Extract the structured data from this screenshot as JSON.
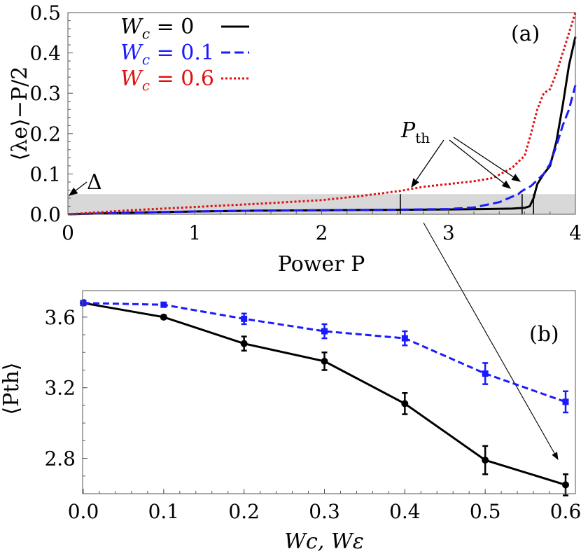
{
  "chart_data": [
    {
      "type": "line",
      "panel_label": "(a)",
      "xlabel": "Power P",
      "ylabel": "⟨λe⟩−P/2",
      "xlim": [
        0,
        4
      ],
      "ylim": [
        0,
        0.5
      ],
      "xticks": [
        "0",
        "1",
        "2",
        "3",
        "4"
      ],
      "yticks": [
        "0.0",
        "0.1",
        "0.2",
        "0.3",
        "0.4",
        "0.5"
      ],
      "band": {
        "label": "Δ",
        "y_max": 0.05
      },
      "annotation": "Pth",
      "thresholds": [
        2.62,
        3.58,
        3.67
      ],
      "series": [
        {
          "name": "Wc = 0",
          "color": "#000000",
          "dash": "solid",
          "x": [
            0,
            0.5,
            1,
            1.5,
            2,
            2.5,
            3,
            3.3,
            3.5,
            3.6,
            3.64,
            3.67,
            3.7,
            3.75,
            3.8,
            3.85,
            3.9,
            3.95,
            4.0
          ],
          "y": [
            0.0,
            0.004,
            0.007,
            0.009,
            0.01,
            0.011,
            0.012,
            0.013,
            0.014,
            0.016,
            0.02,
            0.04,
            0.075,
            0.1,
            0.12,
            0.18,
            0.27,
            0.37,
            0.44
          ]
        },
        {
          "name": "Wc = 0.1",
          "color": "#1a1aff",
          "dash": "dashed",
          "x": [
            0,
            0.5,
            1,
            1.5,
            2,
            2.5,
            3,
            3.2,
            3.4,
            3.55,
            3.58,
            3.65,
            3.7,
            3.75,
            3.8,
            3.85,
            3.9,
            3.95,
            4.0
          ],
          "y": [
            0.0,
            0.004,
            0.007,
            0.009,
            0.01,
            0.011,
            0.013,
            0.017,
            0.03,
            0.05,
            0.058,
            0.07,
            0.085,
            0.1,
            0.125,
            0.17,
            0.22,
            0.26,
            0.32
          ]
        },
        {
          "name": "Wc = 0.6",
          "color": "#e01010",
          "dash": "dotted",
          "x": [
            0,
            0.5,
            1,
            1.5,
            2,
            2.3,
            2.62,
            2.8,
            3.0,
            3.2,
            3.35,
            3.5,
            3.6,
            3.65,
            3.7,
            3.75,
            3.8,
            3.85,
            3.9,
            3.95,
            4.0
          ],
          "y": [
            0.0,
            0.01,
            0.018,
            0.026,
            0.035,
            0.045,
            0.058,
            0.068,
            0.075,
            0.082,
            0.09,
            0.115,
            0.145,
            0.2,
            0.26,
            0.3,
            0.31,
            0.35,
            0.4,
            0.45,
            0.5
          ]
        }
      ]
    },
    {
      "type": "line",
      "panel_label": "(b)",
      "xlabel": "Wc, Wε",
      "ylabel": "⟨Pth⟩",
      "xlim": [
        0,
        0.6
      ],
      "ylim": [
        2.6,
        3.75
      ],
      "xticks": [
        "0.0",
        "0.1",
        "0.2",
        "0.3",
        "0.4",
        "0.5",
        "0.6"
      ],
      "yticks": [
        "2.8",
        "3.2",
        "3.6"
      ],
      "x": [
        0.0,
        0.1,
        0.2,
        0.3,
        0.4,
        0.5,
        0.6
      ],
      "series": [
        {
          "name": "Wc",
          "color": "#000000",
          "dash": "solid",
          "marker": "circle",
          "values": [
            3.68,
            3.6,
            3.45,
            3.35,
            3.11,
            2.79,
            2.65
          ],
          "errors": [
            0.0,
            0.01,
            0.04,
            0.05,
            0.06,
            0.08,
            0.06
          ]
        },
        {
          "name": "Wε",
          "color": "#1a1aff",
          "dash": "dashed",
          "marker": "square",
          "values": [
            3.68,
            3.67,
            3.59,
            3.52,
            3.48,
            3.28,
            3.12
          ],
          "errors": [
            0.0,
            0.01,
            0.03,
            0.04,
            0.04,
            0.06,
            0.06
          ]
        }
      ]
    }
  ]
}
